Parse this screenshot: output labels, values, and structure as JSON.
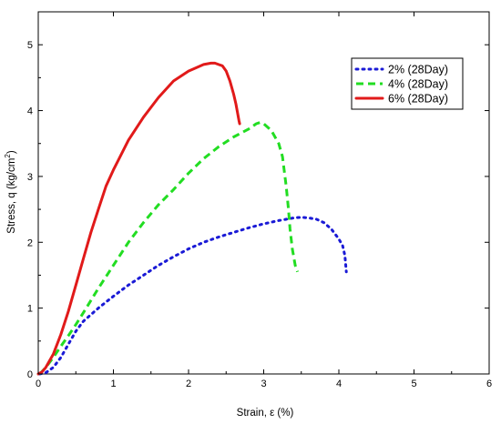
{
  "chart_data": {
    "type": "line",
    "xlabel": "Strain, ε (%)",
    "ylabel_main": "Stress, q (kg/cm",
    "ylabel_sup": "2",
    "ylabel_close": ")",
    "xlim": [
      0,
      6
    ],
    "ylim": [
      0,
      5.5
    ],
    "x_ticks": [
      0,
      1,
      2,
      3,
      4,
      5,
      6
    ],
    "y_ticks": [
      0,
      1,
      2,
      3,
      4,
      5
    ],
    "grid": false,
    "legend_position": "top-right",
    "series": [
      {
        "name": "2% (28Day)",
        "color": "#1a1ad6",
        "style": "dotted",
        "x": [
          0.02,
          0.1,
          0.2,
          0.3,
          0.4,
          0.5,
          0.6,
          0.8,
          1.0,
          1.2,
          1.4,
          1.6,
          1.8,
          2.0,
          2.2,
          2.4,
          2.6,
          2.8,
          3.0,
          3.2,
          3.4,
          3.5,
          3.6,
          3.7,
          3.8,
          3.9,
          4.0,
          4.05,
          4.08,
          4.1
        ],
        "y": [
          0.0,
          0.02,
          0.1,
          0.25,
          0.45,
          0.65,
          0.8,
          1.0,
          1.18,
          1.35,
          1.5,
          1.65,
          1.78,
          1.9,
          2.0,
          2.08,
          2.15,
          2.22,
          2.28,
          2.33,
          2.37,
          2.38,
          2.37,
          2.35,
          2.3,
          2.2,
          2.05,
          1.95,
          1.8,
          1.55
        ]
      },
      {
        "name": "4% (28Day)",
        "color": "#22dd22",
        "style": "dashed",
        "x": [
          0.02,
          0.1,
          0.2,
          0.3,
          0.4,
          0.5,
          0.6,
          0.8,
          1.0,
          1.2,
          1.4,
          1.6,
          1.8,
          2.0,
          2.2,
          2.4,
          2.6,
          2.8,
          2.9,
          2.95,
          3.0,
          3.1,
          3.2,
          3.25,
          3.3,
          3.33,
          3.35,
          3.38,
          3.42,
          3.45
        ],
        "y": [
          0.0,
          0.1,
          0.25,
          0.42,
          0.58,
          0.75,
          0.93,
          1.3,
          1.65,
          2.0,
          2.3,
          2.57,
          2.8,
          3.05,
          3.27,
          3.45,
          3.6,
          3.72,
          3.8,
          3.82,
          3.8,
          3.7,
          3.5,
          3.3,
          2.85,
          2.5,
          2.2,
          1.9,
          1.65,
          1.55
        ]
      },
      {
        "name": "6% (28Day)",
        "color": "#e11a1a",
        "style": "solid",
        "x": [
          0.0,
          0.05,
          0.1,
          0.2,
          0.3,
          0.4,
          0.5,
          0.6,
          0.7,
          0.8,
          0.9,
          1.0,
          1.2,
          1.4,
          1.6,
          1.8,
          2.0,
          2.1,
          2.2,
          2.3,
          2.35,
          2.4,
          2.45,
          2.5,
          2.55,
          2.6,
          2.63,
          2.65,
          2.67,
          2.68
        ],
        "y": [
          0.0,
          0.03,
          0.1,
          0.3,
          0.6,
          0.95,
          1.35,
          1.75,
          2.15,
          2.5,
          2.85,
          3.1,
          3.55,
          3.9,
          4.2,
          4.45,
          4.6,
          4.65,
          4.7,
          4.72,
          4.72,
          4.7,
          4.68,
          4.6,
          4.45,
          4.25,
          4.1,
          3.98,
          3.85,
          3.8
        ]
      }
    ]
  }
}
